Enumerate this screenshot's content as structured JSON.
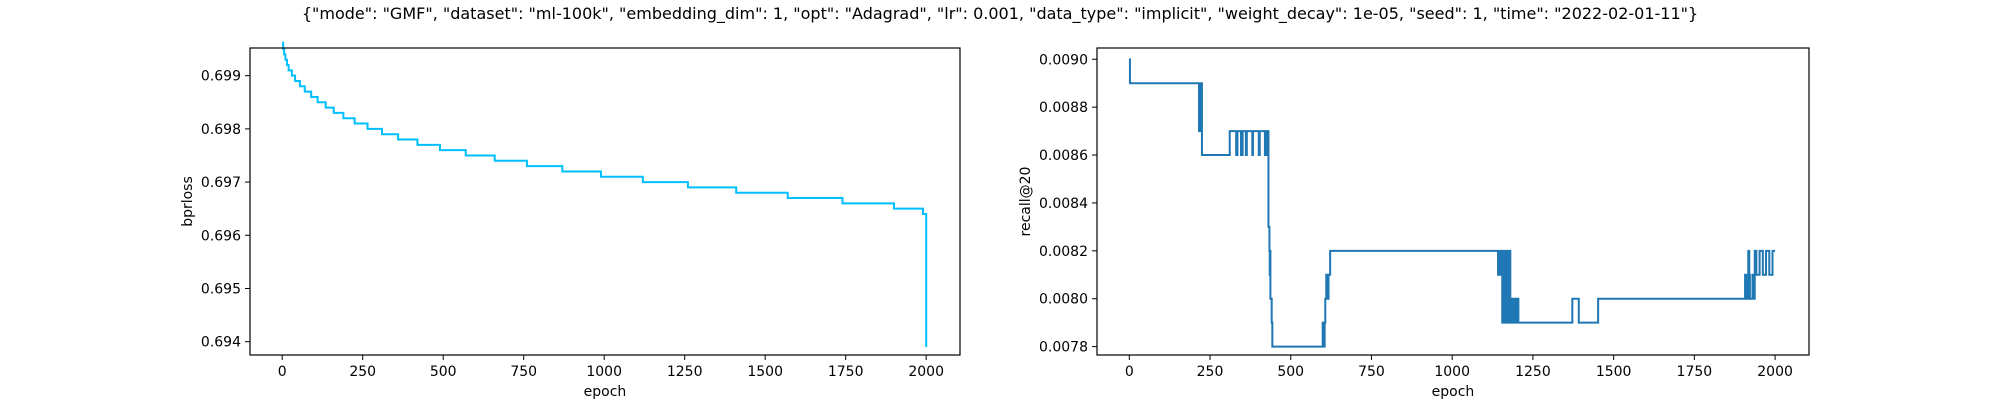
{
  "figure": {
    "suptitle": "{\"mode\": \"GMF\", \"dataset\": \"ml-100k\", \"embedding_dim\": 1, \"opt\": \"Adagrad\", \"lr\": 0.001, \"data_type\": \"implicit\", \"weight_decay\": 1e-05, \"seed\": 1, \"time\": \"2022-02-01-11\"}"
  },
  "chart_data": [
    {
      "type": "line",
      "xlabel": "epoch",
      "ylabel": "bprloss",
      "xlim": [
        -100,
        2105
      ],
      "ylim": [
        0.69375,
        0.69952
      ],
      "xticks": [
        0,
        250,
        500,
        750,
        1000,
        1250,
        1500,
        1750,
        2000
      ],
      "yticks": [
        0.694,
        0.695,
        0.696,
        0.697,
        0.698,
        0.699
      ],
      "ytick_labels": [
        "0.694",
        "0.695",
        "0.696",
        "0.697",
        "0.698",
        "0.699"
      ],
      "color": "#00bfff",
      "series": [
        {
          "x": [
            0,
            3,
            6,
            10,
            15,
            20,
            30,
            40,
            55,
            70,
            90,
            110,
            135,
            160,
            190,
            225,
            265,
            310,
            360,
            420,
            490,
            570,
            660,
            760,
            870,
            990,
            1120,
            1260,
            1410,
            1570,
            1740,
            1900,
            1990,
            2000
          ],
          "y": [
            0.69962,
            0.6995,
            0.6994,
            0.6993,
            0.6992,
            0.6991,
            0.699,
            0.6989,
            0.6988,
            0.6987,
            0.6986,
            0.6985,
            0.6984,
            0.6983,
            0.6982,
            0.6981,
            0.698,
            0.6979,
            0.6978,
            0.6977,
            0.6976,
            0.6975,
            0.6974,
            0.6973,
            0.6972,
            0.6971,
            0.697,
            0.6969,
            0.6968,
            0.6967,
            0.6966,
            0.6965,
            0.6964,
            0.6939
          ]
        }
      ]
    },
    {
      "type": "line",
      "xlabel": "epoch",
      "ylabel": "recall@20",
      "xlim": [
        -100,
        2105
      ],
      "ylim": [
        0.007765,
        0.009047
      ],
      "xticks": [
        0,
        250,
        500,
        750,
        1000,
        1250,
        1500,
        1750,
        2000
      ],
      "yticks": [
        0.0078,
        0.008,
        0.0082,
        0.0084,
        0.0086,
        0.0088,
        0.009
      ],
      "ytick_labels": [
        "0.0078",
        "0.0080",
        "0.0082",
        "0.0084",
        "0.0086",
        "0.0088",
        "0.0090"
      ],
      "color": "#1f77b4",
      "series": [
        {
          "x": [
            0,
            1,
            2,
            215,
            216,
            218,
            219,
            221,
            222,
            224,
            225,
            226,
            228,
            229,
            310,
            311,
            313,
            314,
            330,
            331,
            334,
            335,
            345,
            346,
            350,
            351,
            360,
            361,
            363,
            364,
            380,
            381,
            382,
            383,
            400,
            401,
            403,
            404,
            418,
            420,
            425,
            426,
            430,
            431,
            433,
            434,
            435,
            436,
            437,
            438,
            440,
            441,
            443,
            598,
            599,
            601,
            603,
            605,
            607,
            610,
            612,
            615,
            617,
            620,
            622,
            625,
            1140,
            1142,
            1144,
            1146,
            1148,
            1150,
            1152,
            1155,
            1157,
            1160,
            1162,
            1165,
            1168,
            1170,
            1172,
            1175,
            1178,
            1180,
            1183,
            1185,
            1188,
            1190,
            1192,
            1195,
            1198,
            1200,
            1202,
            1205,
            1370,
            1372,
            1390,
            1392,
            1450,
            1452,
            1905,
            1907,
            1910,
            1912,
            1915,
            1917,
            1920,
            1922,
            1930,
            1932,
            1935,
            1937,
            1940,
            1942,
            1950,
            1952,
            1960,
            1962,
            1970,
            1972,
            1980,
            1982,
            1990,
            1992,
            2000
          ],
          "y": [
            0.009,
            0.009,
            0.0089,
            0.0089,
            0.0087,
            0.0089,
            0.0088,
            0.0089,
            0.0087,
            0.0089,
            0.0086,
            0.0086,
            0.0086,
            0.0086,
            0.0086,
            0.0087,
            0.0087,
            0.0087,
            0.0087,
            0.0086,
            0.0086,
            0.0087,
            0.0087,
            0.0086,
            0.0086,
            0.0087,
            0.0087,
            0.0086,
            0.0086,
            0.0087,
            0.0087,
            0.0086,
            0.0086,
            0.0087,
            0.0087,
            0.0086,
            0.0086,
            0.0087,
            0.0087,
            0.0086,
            0.0086,
            0.0087,
            0.0087,
            0.0083,
            0.0083,
            0.0082,
            0.0081,
            0.0082,
            0.008,
            0.008,
            0.008,
            0.0079,
            0.0078,
            0.0078,
            0.0079,
            0.0079,
            0.0078,
            0.0079,
            0.008,
            0.0081,
            0.0081,
            0.008,
            0.0081,
            0.0081,
            0.0082,
            0.0082,
            0.0082,
            0.0081,
            0.0082,
            0.0081,
            0.0082,
            0.0081,
            0.0082,
            0.0079,
            0.0082,
            0.0081,
            0.0079,
            0.0082,
            0.0079,
            0.0081,
            0.0082,
            0.0079,
            0.0082,
            0.0079,
            0.008,
            0.0079,
            0.008,
            0.0079,
            0.008,
            0.0079,
            0.008,
            0.0079,
            0.008,
            0.0079,
            0.0079,
            0.008,
            0.008,
            0.0079,
            0.0079,
            0.008,
            0.008,
            0.0081,
            0.008,
            0.0081,
            0.008,
            0.0082,
            0.0081,
            0.008,
            0.0081,
            0.0081,
            0.008,
            0.0082,
            0.0082,
            0.0081,
            0.0081,
            0.0082,
            0.0082,
            0.0081,
            0.0081,
            0.0082,
            0.0082,
            0.0081,
            0.0081,
            0.0082,
            0.0082
          ]
        }
      ]
    }
  ]
}
